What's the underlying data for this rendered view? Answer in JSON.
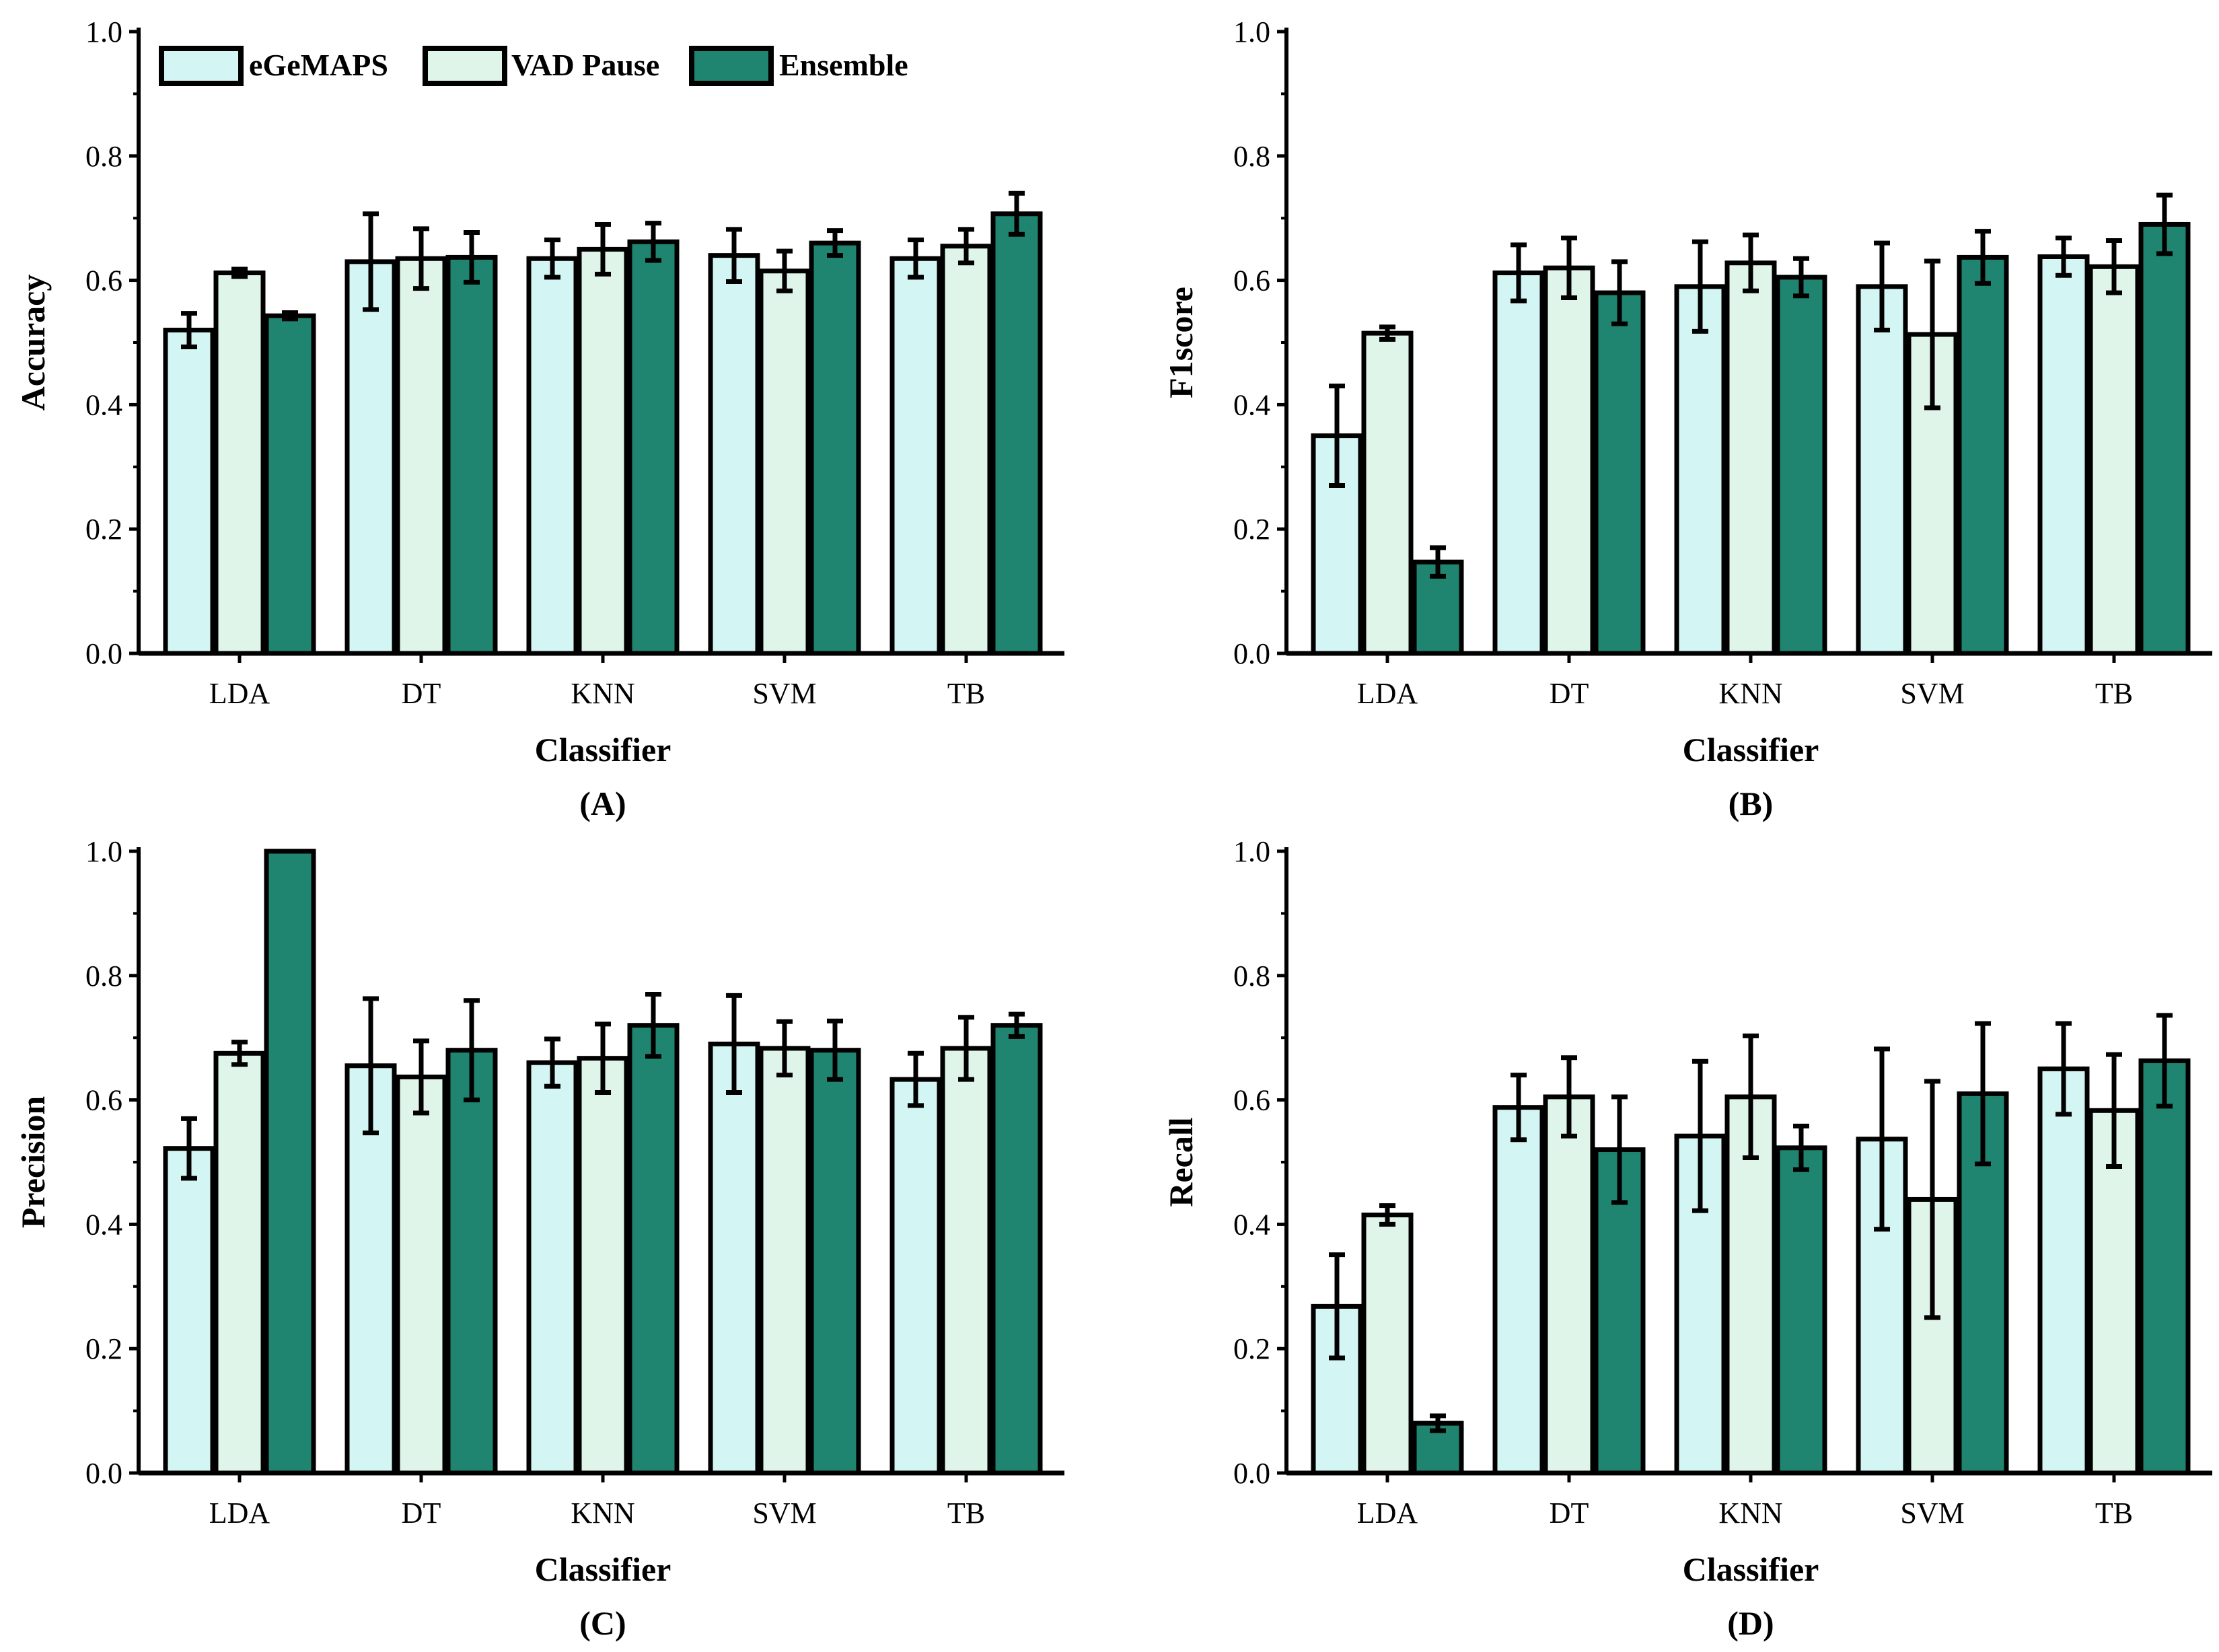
{
  "figure": {
    "colors": {
      "eGeMAPS": "#d3f5f3",
      "VAD Pause": "#e0f5ea",
      "Ensemble": "#1f8470",
      "stroke": "#000000"
    },
    "legend": [
      "eGeMAPS",
      "VAD Pause",
      "Ensemble"
    ]
  },
  "chart_data": [
    {
      "type": "bar",
      "panel": "(A)",
      "ylabel": "Accuracy",
      "xlabel": "Classifier",
      "ylim": [
        0.0,
        1.0
      ],
      "yticks": [
        "0.0",
        "0.2",
        "0.4",
        "0.6",
        "0.8",
        "1.0"
      ],
      "categories": [
        "LDA",
        "DT",
        "KNN",
        "SVM",
        "TB"
      ],
      "legend_position": "top-left",
      "series": [
        {
          "name": "eGeMAPS",
          "values": [
            0.52,
            0.63,
            0.635,
            0.64,
            0.635
          ],
          "errors": [
            0.027,
            0.077,
            0.03,
            0.042,
            0.03
          ]
        },
        {
          "name": "VAD Pause",
          "values": [
            0.612,
            0.635,
            0.65,
            0.615,
            0.655
          ],
          "errors": [
            0.006,
            0.048,
            0.04,
            0.032,
            0.027
          ]
        },
        {
          "name": "Ensemble",
          "values": [
            0.543,
            0.637,
            0.662,
            0.66,
            0.707
          ],
          "errors": [
            0.005,
            0.04,
            0.03,
            0.02,
            0.033
          ]
        }
      ]
    },
    {
      "type": "bar",
      "panel": "(B)",
      "ylabel": "F1score",
      "xlabel": "Classifier",
      "ylim": [
        0.0,
        1.0
      ],
      "yticks": [
        "0.0",
        "0.2",
        "0.4",
        "0.6",
        "0.8",
        "1.0"
      ],
      "categories": [
        "LDA",
        "DT",
        "KNN",
        "SVM",
        "TB"
      ],
      "series": [
        {
          "name": "eGeMAPS",
          "values": [
            0.35,
            0.612,
            0.59,
            0.59,
            0.638
          ],
          "errors": [
            0.08,
            0.045,
            0.072,
            0.07,
            0.03
          ]
        },
        {
          "name": "VAD Pause",
          "values": [
            0.515,
            0.62,
            0.628,
            0.513,
            0.622
          ],
          "errors": [
            0.01,
            0.048,
            0.045,
            0.118,
            0.042
          ]
        },
        {
          "name": "Ensemble",
          "values": [
            0.147,
            0.58,
            0.605,
            0.637,
            0.69
          ],
          "errors": [
            0.023,
            0.05,
            0.03,
            0.042,
            0.047
          ]
        }
      ]
    },
    {
      "type": "bar",
      "panel": "(C)",
      "ylabel": "Precision",
      "xlabel": "Classifier",
      "ylim": [
        0.0,
        1.0
      ],
      "yticks": [
        "0.0",
        "0.2",
        "0.4",
        "0.6",
        "0.8",
        "1.0"
      ],
      "categories": [
        "LDA",
        "DT",
        "KNN",
        "SVM",
        "TB"
      ],
      "series": [
        {
          "name": "eGeMAPS",
          "values": [
            0.522,
            0.655,
            0.66,
            0.69,
            0.633
          ],
          "errors": [
            0.048,
            0.108,
            0.038,
            0.078,
            0.042
          ]
        },
        {
          "name": "VAD Pause",
          "values": [
            0.675,
            0.637,
            0.667,
            0.683,
            0.683
          ],
          "errors": [
            0.018,
            0.058,
            0.055,
            0.043,
            0.05
          ]
        },
        {
          "name": "Ensemble",
          "values": [
            1.0,
            0.68,
            0.72,
            0.68,
            0.72
          ],
          "errors": [
            0.0,
            0.08,
            0.05,
            0.047,
            0.018
          ]
        }
      ]
    },
    {
      "type": "bar",
      "panel": "(D)",
      "ylabel": "Recall",
      "xlabel": "Classifier",
      "ylim": [
        0.0,
        1.0
      ],
      "yticks": [
        "0.0",
        "0.2",
        "0.4",
        "0.6",
        "0.8",
        "1.0"
      ],
      "categories": [
        "LDA",
        "DT",
        "KNN",
        "SVM",
        "TB"
      ],
      "series": [
        {
          "name": "eGeMAPS",
          "values": [
            0.268,
            0.588,
            0.542,
            0.537,
            0.65
          ],
          "errors": [
            0.083,
            0.052,
            0.12,
            0.145,
            0.073
          ]
        },
        {
          "name": "VAD Pause",
          "values": [
            0.415,
            0.605,
            0.605,
            0.44,
            0.583
          ],
          "errors": [
            0.015,
            0.063,
            0.098,
            0.19,
            0.09
          ]
        },
        {
          "name": "Ensemble",
          "values": [
            0.08,
            0.52,
            0.523,
            0.61,
            0.663
          ],
          "errors": [
            0.012,
            0.085,
            0.035,
            0.113,
            0.073
          ]
        }
      ]
    }
  ]
}
